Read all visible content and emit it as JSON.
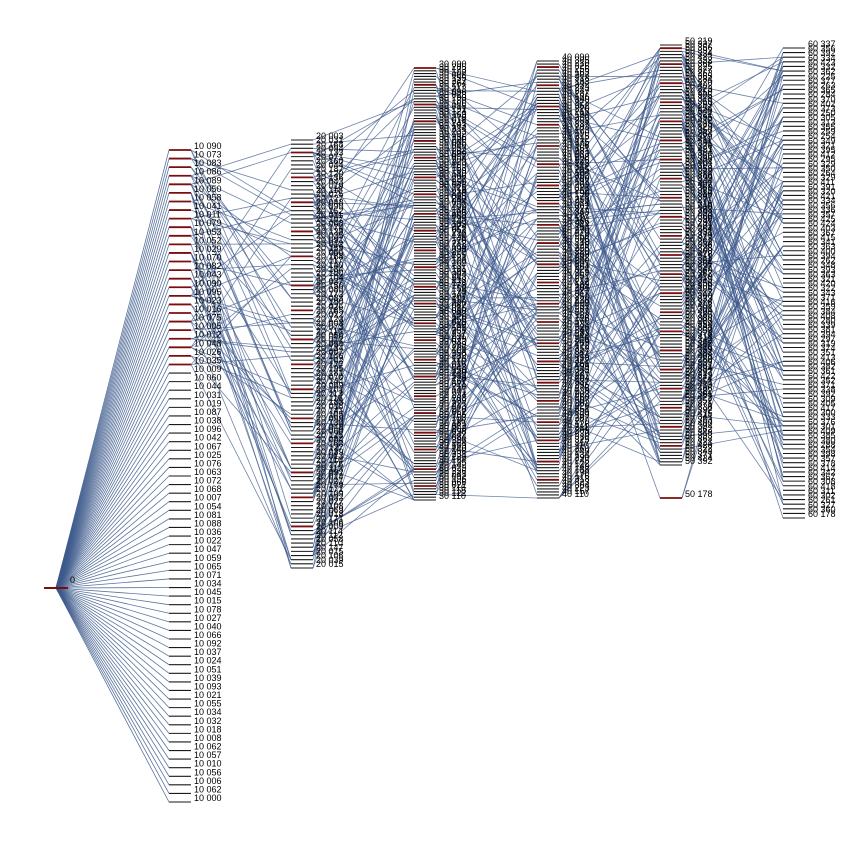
{
  "diagram": {
    "root_label": "0",
    "link_color": "#3d5a8c",
    "node_color": "#1a1a1a",
    "highlight_color": "#7a0e0e",
    "layers": [
      {
        "labels": [
          "10 090",
          "10 073",
          "10 083",
          "10 086",
          "10 089",
          "10 050",
          "10 058",
          "10 041",
          "10 011",
          "10 079",
          "10 053",
          "10 052",
          "10 029",
          "10 070",
          "10 082",
          "10 043",
          "10 090",
          "10 095",
          "10 023",
          "10 016",
          "10 075",
          "10 005",
          "10 012",
          "10 048",
          "10 026",
          "10 035",
          "10 009",
          "10 060",
          "10 044",
          "10 031",
          "10 019",
          "10 087",
          "10 038",
          "10 096",
          "10 042",
          "10 067",
          "10 025",
          "10 076",
          "10 063",
          "10 072",
          "10 068",
          "10 007",
          "10 054",
          "10 081",
          "10 088",
          "10 036",
          "10 022",
          "10 047",
          "10 059",
          "10 065",
          "10 071",
          "10 034",
          "10 045",
          "10 015",
          "10 078",
          "10 027",
          "10 040",
          "10 066",
          "10 092",
          "10 037",
          "10 024",
          "10 051",
          "10 039",
          "10 093",
          "10 021",
          "10 055",
          "10 034",
          "10 032",
          "10 018",
          "10 008",
          "10 062",
          "10 057",
          "10 010",
          "10 056",
          "10 006",
          "10 062",
          "10 000"
        ],
        "highlight": [
          0,
          1,
          2,
          3,
          4,
          5,
          6,
          7,
          8,
          9,
          10,
          11,
          12,
          13,
          14,
          15,
          16,
          17,
          18,
          19,
          20,
          21,
          22,
          23,
          24,
          25
        ]
      },
      {
        "labels": [
          "20 003",
          "20 031",
          "20 168",
          "20 094",
          "20 133",
          "20 071",
          "20 160",
          "20 044",
          "20 187",
          "20 120",
          "20 136",
          "20 043",
          "20 019",
          "20 118",
          "20 075",
          "20 127",
          "20 048",
          "20 090",
          "20 152",
          "20 011",
          "20 107",
          "20 068",
          "20 174",
          "20 129",
          "20 035",
          "20 091",
          "20 012",
          "20 159",
          "20 066",
          "20 188",
          "20 117",
          "20 140",
          "20 184",
          "20 100",
          "20 104",
          "20 037",
          "20 156",
          "20 080",
          "20 172",
          "20 083",
          "20 190",
          "20 026",
          "20 185",
          "20 022",
          "20 123",
          "20 003",
          "20 073",
          "20 116",
          "20 050",
          "20 012",
          "20 054",
          "20 134",
          "20 007",
          "20 146",
          "20 102",
          "20 177",
          "20 195",
          "20 181",
          "20 070",
          "20 144",
          "20 009",
          "20 101",
          "20 113",
          "20 116",
          "20 183",
          "20 018",
          "20 141",
          "20 105",
          "20 099",
          "20 130",
          "20 048",
          "20 060",
          "20 125",
          "20 084",
          "20 163",
          "20 127",
          "20 039",
          "20 013",
          "20 116",
          "20 175",
          "20 113",
          "20 092",
          "20 014",
          "20 021",
          "20 179",
          "20 171",
          "20 109",
          "20 032",
          "20 027",
          "20 108",
          "20 069",
          "20 018",
          "20 171",
          "20 106",
          "20 009",
          "20 114",
          "20 112",
          "20 058",
          "20 110",
          "20 147",
          "20 015",
          "20 106",
          "20 039",
          "20 015"
        ],
        "highlight": [
          3,
          9,
          15,
          22,
          28,
          35,
          41,
          48,
          54,
          60,
          67,
          73,
          80,
          86,
          93
        ]
      },
      {
        "labels": [
          "30 090",
          "30 285",
          "30 173",
          "30 102",
          "30 068",
          "30 155",
          "30 247",
          "30 264",
          "30 117",
          "30 213",
          "30 096",
          "30 028",
          "30 199",
          "30 180",
          "30 166",
          "30 015",
          "30 191",
          "30 124",
          "30 169",
          "30 279",
          "30 018",
          "30 241",
          "30 103",
          "30 214",
          "30 233",
          "30 132",
          "30 236",
          "30 220",
          "30 085",
          "30 046",
          "30 257",
          "30 262",
          "30 099",
          "30 057",
          "30 200",
          "30 223",
          "30 189",
          "30 153",
          "30 139",
          "30 130",
          "30 006",
          "30 227",
          "30 259",
          "30 043",
          "30 125",
          "30 018",
          "30 278",
          "30 095",
          "30 240",
          "30 094",
          "30 252",
          "30 193",
          "30 140",
          "30 106",
          "30 058",
          "30 193",
          "30 143",
          "30 183",
          "30 274",
          "30 052",
          "30 228",
          "30 174",
          "30 146",
          "30 176",
          "30 212",
          "30 183",
          "30 038",
          "30 277",
          "30 255",
          "30 121",
          "30 120",
          "30 102",
          "30 137",
          "30 131",
          "30 159",
          "30 204",
          "30 243",
          "30 218",
          "30 174",
          "30 178",
          "30 152",
          "30 179",
          "30 147",
          "30 207",
          "30 112",
          "30 226",
          "30 087",
          "30 015",
          "30 080",
          "30 243",
          "30 126",
          "30 255",
          "30 025",
          "30 219",
          "30 195",
          "30 251",
          "30 237",
          "30 211",
          "30 079",
          "30 033",
          "30 229",
          "30 226",
          "30 101",
          "30 258",
          "30 212",
          "30 128",
          "30 116",
          "30 016",
          "30 043",
          "30 156",
          "30 240",
          "30 133",
          "30 218",
          "30 167",
          "30 021",
          "30 210",
          "30 141",
          "30 071",
          "30 234",
          "30 233",
          "30 199",
          "30 221",
          "30 243",
          "30 270",
          "30 052",
          "30 165",
          "30 153",
          "30 116",
          "30 181",
          "30 072",
          "30 203",
          "30 098",
          "30 242",
          "30 084",
          "30 226",
          "30 224",
          "30 109",
          "30 240",
          "30 158",
          "30 231",
          "30 220",
          "30 124",
          "30 135",
          "30 142",
          "30 023",
          "30 236",
          "30 241",
          "30 092",
          "30 196",
          "30 066",
          "30 021",
          "30 116",
          "30 118",
          "30 122",
          "30 110"
        ],
        "highlight": [
          0,
          6,
          13,
          19,
          26,
          32,
          39,
          45,
          52,
          58,
          65,
          71,
          78,
          84,
          91,
          97,
          104,
          110,
          117,
          123,
          130,
          136,
          143,
          149
        ]
      },
      {
        "labels": [
          "40 090",
          "40 305",
          "40 210",
          "40 326",
          "40 256",
          "40 163",
          "40 207",
          "40 318",
          "40 183",
          "40 332",
          "40 243",
          "40 247",
          "40 287",
          "40 186",
          "40 340",
          "40 272",
          "40 352",
          "40 220",
          "40 218",
          "40 194",
          "40 350",
          "40 253",
          "40 337",
          "40 283",
          "40 173",
          "40 190",
          "40 215",
          "40 312",
          "40 175",
          "40 306",
          "40 161",
          "40 281",
          "40 233",
          "40 298",
          "40 225",
          "40 243",
          "40 142",
          "40 265",
          "40 184",
          "40 353",
          "40 200",
          "40 197",
          "40 269",
          "40 321",
          "40 252",
          "40 190",
          "40 173",
          "40 258",
          "40 214",
          "40 301",
          "40 327",
          "40 343",
          "40 287",
          "40 110",
          "40 266",
          "40 344",
          "40 154",
          "40 270",
          "40 279",
          "40 250",
          "40 306",
          "40 318",
          "40 125",
          "40 225",
          "40 220",
          "40 289",
          "40 282",
          "40 240",
          "40 201",
          "40 264",
          "40 324",
          "40 259",
          "40 251",
          "40 271",
          "40 212",
          "40 189",
          "40 204",
          "40 227",
          "40 317",
          "40 250",
          "40 226",
          "40 229",
          "40 231",
          "40 257",
          "40 337",
          "40 128",
          "40 126",
          "40 170",
          "40 231",
          "40 326",
          "40 247",
          "40 283",
          "40 244",
          "40 246",
          "40 269",
          "40 172",
          "40 352",
          "40 347",
          "40 314",
          "40 159",
          "40 312",
          "40 251",
          "40 199",
          "40 343",
          "40 227",
          "40 287",
          "40 204",
          "40 337",
          "40 235",
          "40 275",
          "40 238",
          "40 203",
          "40 260",
          "40 307",
          "40 202",
          "40 220",
          "40 351",
          "40 339",
          "40 159",
          "40 287",
          "40 270",
          "40 126",
          "40 211",
          "40 209",
          "40 230",
          "40 318",
          "40 325",
          "40 317",
          "40 110",
          "40 260",
          "40 240",
          "40 134",
          "40 290",
          "40 245",
          "40 122",
          "40 149",
          "40 188",
          "40 170",
          "40 176",
          "40 318",
          "40 323",
          "40 304",
          "40 223",
          "40 157",
          "40 110"
        ],
        "highlight": [
          2,
          8,
          15,
          21,
          28,
          34,
          41,
          47,
          54,
          60,
          67,
          73,
          80,
          86,
          93,
          99,
          106,
          112,
          119,
          125,
          132,
          138
        ]
      },
      {
        "labels": [
          "50 219",
          "50 337",
          "50 356",
          "50 392",
          "50 334",
          "50 423",
          "50 332",
          "50 362",
          "50 225",
          "50 377",
          "50 263",
          "50 365",
          "50 284",
          "50 370",
          "50 402",
          "50 373",
          "50 250",
          "50 305",
          "50 313",
          "50 355",
          "50 259",
          "50 254",
          "50 349",
          "50 321",
          "50 395",
          "50 412",
          "50 295",
          "50 329",
          "50 350",
          "50 264",
          "50 329",
          "50 411",
          "50 391",
          "50 320",
          "50 421",
          "50 334",
          "50 356",
          "50 396",
          "50 404",
          "50 303",
          "50 358",
          "50 372",
          "50 388",
          "50 399",
          "50 344",
          "50 407",
          "50 368",
          "50 375",
          "50 386",
          "50 397",
          "50 271",
          "50 316",
          "50 410",
          "50 383",
          "50 293",
          "50 366",
          "50 390",
          "50 291",
          "50 401",
          "50 364",
          "50 331",
          "50 379",
          "50 347",
          "50 262",
          "50 338",
          "50 328",
          "50 308",
          "50 418",
          "50 311",
          "50 302",
          "50 261",
          "50 327",
          "50 360",
          "50 367",
          "50 419",
          "50 315",
          "50 256",
          "50 309",
          "50 405",
          "50 417",
          "50 300",
          "50 333",
          "50 376",
          "50 403",
          "50 301",
          "50 409",
          "50 385",
          "50 380",
          "50 288",
          "50 354",
          "50 398",
          "50 357",
          "50 378",
          "50 414",
          "50 342",
          "50 367",
          "50 416",
          "50 359",
          "50 384",
          "50 408",
          "50 280",
          "50 339",
          "50 381",
          "50 394",
          "50 297",
          "50 319",
          "50 374",
          "50 351",
          "50 413",
          "50 406",
          "50 382",
          "50 361",
          "50 422",
          "50 352",
          "50 371",
          "50 338",
          "50 392",
          "50 415",
          "50 341",
          "50 363",
          "50 400",
          "50 394",
          "50 262",
          "50 348",
          "50 393",
          "50 363",
          "50 321",
          "50 420",
          "50 322",
          "50 343",
          "50 371",
          "50 424",
          "50 392",
          "50 178"
        ],
        "highlight": [
          1,
          6,
          12,
          18,
          24,
          30,
          36,
          42,
          48,
          54,
          60,
          66,
          72,
          78,
          84,
          90,
          96,
          102,
          108,
          114,
          120,
          126,
          133
        ]
      },
      {
        "labels": [
          "60 337",
          "60 356",
          "60 392",
          "60 334",
          "60 423",
          "60 332",
          "60 362",
          "60 225",
          "60 377",
          "60 263",
          "60 365",
          "60 284",
          "60 370",
          "60 402",
          "60 373",
          "60 250",
          "60 305",
          "60 313",
          "60 355",
          "60 259",
          "60 254",
          "60 349",
          "60 321",
          "60 395",
          "60 412",
          "60 295",
          "60 329",
          "60 350",
          "60 264",
          "60 329",
          "60 411",
          "60 391",
          "60 320",
          "60 421",
          "60 334",
          "60 356",
          "60 336",
          "60 357",
          "60 425",
          "60 424",
          "60 403",
          "60 367",
          "60 415",
          "60 341",
          "60 363",
          "60 400",
          "60 394",
          "60 262",
          "60 348",
          "60 393",
          "60 363",
          "60 321",
          "60 420",
          "60 322",
          "60 343",
          "60 371",
          "60 416",
          "60 359",
          "60 384",
          "60 408",
          "60 280",
          "60 339",
          "60 381",
          "60 394",
          "60 297",
          "60 319",
          "60 374",
          "60 351",
          "60 413",
          "60 406",
          "60 382",
          "60 361",
          "60 422",
          "60 352",
          "60 371",
          "60 338",
          "60 392",
          "60 309",
          "60 405",
          "60 417",
          "60 300",
          "60 333",
          "60 376",
          "60 301",
          "60 409",
          "60 385",
          "60 380",
          "60 288",
          "60 354",
          "60 398",
          "60 357",
          "60 378",
          "60 414",
          "60 342",
          "60 367",
          "60 308",
          "60 418",
          "60 311",
          "60 302",
          "60 261",
          "60 327",
          "60 360",
          "60 178"
        ],
        "highlight": []
      }
    ]
  }
}
